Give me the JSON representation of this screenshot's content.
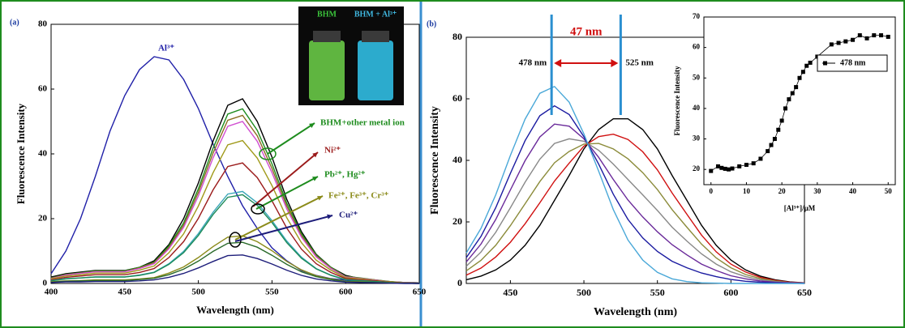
{
  "chart_data": [
    {
      "type": "line",
      "panel_label": "(a)",
      "xlabel": "Wavelength (nm)",
      "ylabel": "Fluorescence Intensity",
      "x": [
        400,
        410,
        420,
        430,
        440,
        450,
        460,
        470,
        480,
        490,
        500,
        510,
        520,
        530,
        540,
        550,
        560,
        570,
        580,
        590,
        600,
        610,
        620,
        630,
        640,
        650
      ],
      "xlim": [
        400,
        650
      ],
      "xticks": [
        400,
        450,
        500,
        550,
        600,
        650
      ],
      "ylim": [
        0,
        80
      ],
      "yticks": [
        0,
        20,
        40,
        60,
        80
      ],
      "series": [
        {
          "color": "#2020a8",
          "values": [
            3,
            10,
            20,
            33,
            47,
            58,
            66,
            70,
            69,
            63,
            54,
            43,
            33,
            24,
            17,
            11,
            7,
            4,
            2.5,
            1.5,
            1,
            0.5,
            0.3,
            0.2,
            0.1,
            0
          ]
        },
        {
          "color": "#000000",
          "values": [
            2,
            3,
            3.5,
            4,
            4,
            4,
            5,
            7,
            12,
            20,
            31,
            44,
            55,
            57,
            50,
            39,
            26,
            16,
            9,
            5,
            2.5,
            1.5,
            1,
            0.5,
            0.3,
            0.2
          ]
        },
        {
          "color": "#1e8c1e",
          "values": [
            1.7,
            2.8,
            3.3,
            3.9,
            3.9,
            3.9,
            5,
            6.6,
            11.6,
            18.7,
            29.2,
            41.8,
            52.3,
            53.9,
            47.3,
            36.9,
            24.8,
            15.4,
            8.8,
            5,
            2.2,
            1.7,
            1.1,
            0.6,
            0.3,
            0.2
          ]
        },
        {
          "color": "#8b6d1f",
          "values": [
            1.6,
            2.7,
            3.2,
            3.7,
            3.7,
            3.7,
            4.8,
            6.4,
            11.1,
            18,
            28.1,
            40.3,
            50.4,
            51.9,
            45.6,
            35.5,
            23.9,
            14.8,
            8.5,
            4.8,
            2.1,
            1.6,
            1.1,
            0.5,
            0.3,
            0.2
          ]
        },
        {
          "color": "#d14fd1",
          "values": [
            1.5,
            2.6,
            3.1,
            3.6,
            3.6,
            3.6,
            4.6,
            6.1,
            10.7,
            17.3,
            27,
            38.8,
            48.5,
            50,
            43.9,
            34.2,
            23,
            14.3,
            8.2,
            4.6,
            2,
            1.5,
            1,
            0.5,
            0.3,
            0.2
          ]
        },
        {
          "color": "#a09a1a",
          "values": [
            1.4,
            2.3,
            2.7,
            3.2,
            3.2,
            3.2,
            4.1,
            5.4,
            9.5,
            15.3,
            23.9,
            34.2,
            42.8,
            44.1,
            38.7,
            30.2,
            20.3,
            12.6,
            7.2,
            4.1,
            1.8,
            1.4,
            0.9,
            0.5,
            0.2,
            0.1
          ]
        },
        {
          "color": "#9b1b1b",
          "values": [
            1.1,
            1.9,
            2.3,
            2.7,
            2.7,
            2.7,
            3.4,
            4.6,
            8,
            12.9,
            20.1,
            28.9,
            36.1,
            37.2,
            32.7,
            25.5,
            17.1,
            10.6,
            6.1,
            3.4,
            1.5,
            1.1,
            0.8,
            0.4,
            0.2,
            0.1
          ]
        },
        {
          "color": "#3aa6b8",
          "values": [
            0.9,
            1.5,
            1.7,
            2,
            2,
            2,
            2.6,
            3.5,
            6.1,
            9.9,
            15.4,
            22,
            27.6,
            28.4,
            24.9,
            19.4,
            13.1,
            8.1,
            4.6,
            2.6,
            1.2,
            0.9,
            0.6,
            0.3,
            0.1,
            0.1
          ]
        },
        {
          "color": "#1d8a58",
          "values": [
            0.8,
            1.4,
            1.7,
            2,
            2,
            2,
            2.5,
            3.4,
            5.9,
            9.5,
            14.8,
            21.3,
            26.6,
            27.4,
            24.1,
            18.8,
            12.6,
            7.8,
            4.5,
            2.5,
            1.1,
            0.8,
            0.6,
            0.3,
            0.1,
            0.1
          ]
        },
        {
          "color": "#8b8b1a",
          "values": [
            0.5,
            0.8,
            0.9,
            1.1,
            1.1,
            1.1,
            1.4,
            1.8,
            3.2,
            5.1,
            8,
            11.4,
            14.3,
            14.7,
            12.9,
            10.1,
            6.8,
            4.2,
            2.4,
            1.4,
            0.6,
            0.5,
            0.3,
            0.2,
            0.1,
            0
          ]
        },
        {
          "color": "#2a6a2a",
          "values": [
            0.4,
            0.7,
            0.8,
            0.9,
            0.9,
            0.9,
            1.2,
            1.6,
            2.7,
            4.4,
            6.9,
            9.9,
            12.4,
            12.7,
            11.2,
            8.7,
            5.9,
            3.6,
            2.1,
            1.2,
            0.5,
            0.4,
            0.3,
            0.1,
            0.1,
            0
          ]
        },
        {
          "color": "#1d1d7a",
          "values": [
            0.3,
            0.5,
            0.5,
            0.6,
            0.6,
            0.6,
            0.8,
            1.1,
            1.9,
            3.1,
            4.8,
            6.8,
            8.6,
            8.8,
            7.7,
            6,
            4.1,
            2.5,
            1.4,
            0.8,
            0.4,
            0.3,
            0.2,
            0.1,
            0,
            0
          ]
        }
      ],
      "annotations": [
        {
          "text": "Al³⁺",
          "color": "#2020a8"
        },
        {
          "text": "BHM+other metal ion",
          "color": "#1e8c1e"
        },
        {
          "text": "Ni²⁺",
          "color": "#9b1b1b"
        },
        {
          "text": "Pb²⁺, Hg²⁺",
          "color": "#1e8c1e"
        },
        {
          "text": "Fe²⁺, Fe³⁺, Cr³⁺",
          "color": "#8b8b1a"
        },
        {
          "text": "Cu²⁺",
          "color": "#1d1d7a"
        }
      ],
      "photo_labels": [
        {
          "text": "BHM",
          "color": "#3cc43c"
        },
        {
          "text": "BHM + Al³⁺",
          "color": "#40b8e0"
        }
      ]
    },
    {
      "type": "line",
      "panel_label": "(b)",
      "xlabel": "Wavelength (nm)",
      "ylabel": "Fluorescence Intensity",
      "x": [
        420,
        430,
        440,
        450,
        460,
        470,
        480,
        490,
        500,
        510,
        520,
        530,
        540,
        550,
        560,
        570,
        580,
        590,
        600,
        610,
        620,
        630,
        640,
        650
      ],
      "xlim": [
        420,
        650
      ],
      "xticks": [
        450,
        500,
        550,
        600,
        650
      ],
      "ylim": [
        0,
        80
      ],
      "yticks": [
        0,
        20,
        40,
        60,
        80
      ],
      "series": [
        {
          "color": "#000000",
          "values": [
            1.2,
            2.4,
            4.4,
            7.6,
            12.4,
            18.9,
            27,
            35.1,
            43.7,
            50,
            53.5,
            53.5,
            50,
            43.7,
            35.1,
            27,
            18.9,
            12.4,
            7.6,
            4.4,
            2.4,
            1.2,
            0.5,
            0.2
          ]
        },
        {
          "color": "#d01010",
          "values": [
            2.7,
            5,
            8.6,
            13.4,
            19.4,
            26.2,
            33.3,
            39.1,
            44.6,
            47.7,
            48.5,
            46.8,
            42.8,
            36.9,
            29.4,
            22.5,
            15.7,
            10.3,
            6.3,
            3.7,
            2,
            1,
            0.4,
            0.2
          ]
        },
        {
          "color": "#8b8b3a",
          "values": [
            4.1,
            7.5,
            12.4,
            18.8,
            25.9,
            33.1,
            39.2,
            42.9,
            45.3,
            45.5,
            43.7,
            40.5,
            36,
            30.5,
            24,
            18.3,
            12.8,
            8.3,
            5.1,
            2.9,
            1.6,
            0.8,
            0.3,
            0.1
          ]
        },
        {
          "color": "#888888",
          "values": [
            5.6,
            10.2,
            16.6,
            24.6,
            32.9,
            40.4,
            45.5,
            47,
            46.2,
            43.3,
            38.8,
            33.8,
            28.8,
            23.7,
            18.3,
            13.8,
            9.6,
            6.3,
            3.8,
            2.2,
            1.2,
            0.6,
            0.3,
            0.1
          ]
        },
        {
          "color": "#6a2a9a",
          "values": [
            7,
            12.8,
            20.8,
            30.4,
            39.9,
            47.6,
            51.8,
            51.1,
            47,
            41,
            33.8,
            27.1,
            21.6,
            16.8,
            12.6,
            9.3,
            6.3,
            4.2,
            2.5,
            1.5,
            0.8,
            0.4,
            0.2,
            0.1
          ]
        },
        {
          "color": "#1a1aa0",
          "values": [
            8.4,
            15.3,
            24.6,
            35.8,
            46.4,
            54.5,
            57.7,
            54.9,
            47.7,
            38.8,
            29,
            20.8,
            14.8,
            10.4,
            7.2,
            5.1,
            3.4,
            2.2,
            1.3,
            0.7,
            0.4,
            0.2,
            0.1,
            0
          ]
        },
        {
          "color": "#4aa8d8",
          "values": [
            9.9,
            17.9,
            28.8,
            41.6,
            53.4,
            61.8,
            64,
            58.9,
            48.6,
            36.5,
            24,
            14.1,
            7.6,
            3.6,
            1.5,
            0.6,
            0.2,
            0.1,
            0,
            0,
            0,
            0,
            0,
            0
          ]
        }
      ],
      "reference_lines": [
        {
          "value": 478,
          "label": "478 nm"
        },
        {
          "value": 525,
          "label": "525 nm"
        }
      ],
      "shift_label": "47 nm"
    },
    {
      "type": "line",
      "markers": "square",
      "xlabel": "[Al³⁺]/μM",
      "ylabel": "Fluorescence Intensity",
      "x": [
        0,
        2,
        3,
        4,
        5,
        6,
        8,
        10,
        12,
        14,
        16,
        17,
        18,
        19,
        20,
        21,
        22,
        23,
        24,
        25,
        26,
        27,
        28,
        30,
        34,
        36,
        38,
        40,
        42,
        44,
        46,
        48,
        50
      ],
      "xlim": [
        -2,
        52
      ],
      "xticks": [
        0,
        10,
        20,
        30,
        40,
        50
      ],
      "ylim": [
        15,
        70
      ],
      "yticks": [
        20,
        30,
        40,
        50,
        60,
        70
      ],
      "series": [
        {
          "name": "478 nm",
          "color": "#000000",
          "values": [
            19.5,
            21,
            20.5,
            20.2,
            20,
            20.3,
            21,
            21.5,
            22,
            23.5,
            26,
            28,
            30,
            33,
            36,
            40,
            43,
            45,
            47,
            50,
            52,
            54,
            55,
            57,
            61,
            61.5,
            62,
            62.5,
            64,
            63,
            64,
            64,
            63.5
          ]
        }
      ]
    }
  ]
}
